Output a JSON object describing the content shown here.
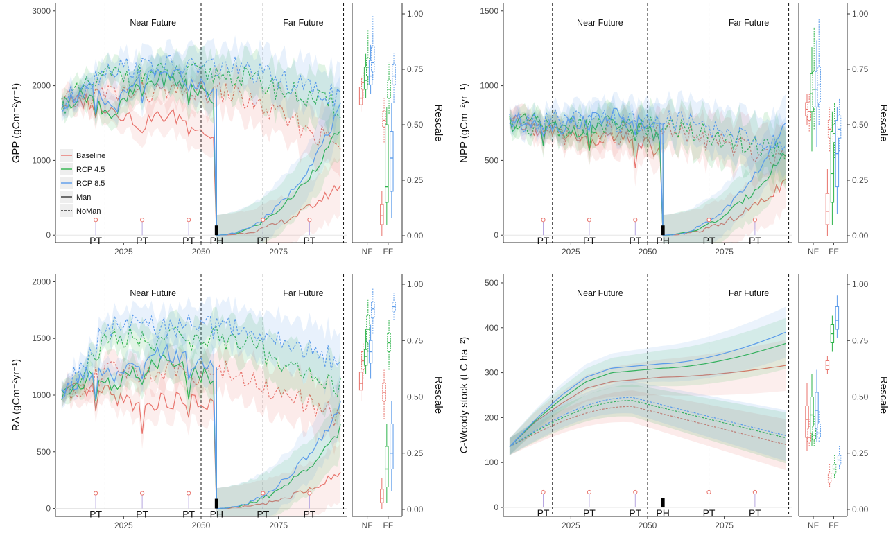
{
  "figure": {
    "legend": {
      "items": [
        {
          "label": "Baseline",
          "color": "#e8736c",
          "style": "solid"
        },
        {
          "label": "RCP 4.5",
          "color": "#2db34a",
          "style": "solid"
        },
        {
          "label": "RCP 8.5",
          "color": "#5b9bea",
          "style": "solid"
        },
        {
          "label": "Man",
          "color": "#333333",
          "style": "solid"
        },
        {
          "label": "NoMan",
          "color": "#333333",
          "style": "dashed"
        }
      ]
    },
    "period_labels": {
      "near": "Near Future",
      "far": "Far Future"
    },
    "event_labels": {
      "pt": "PT",
      "ph": "PH"
    },
    "rescale_label": "Rescale",
    "box_categories": [
      "NF",
      "FF"
    ],
    "x_ticks": [
      "2025",
      "2050",
      "2075"
    ],
    "rescale_ticks": [
      "0.00",
      "0.25",
      "0.50",
      "0.75",
      "1.00"
    ]
  },
  "chart_data": [
    {
      "type": "line",
      "panel": "GPP",
      "ylabel": "GPP (gCm⁻²yr⁻¹)",
      "ylim": [
        -100,
        3100
      ],
      "yticks": [
        0,
        1000,
        2000,
        3000
      ],
      "x_range": [
        2003,
        2097
      ],
      "period_boundaries": [
        2019,
        2050,
        2070,
        2096
      ],
      "pt_years": [
        2016,
        2031,
        2046,
        2070,
        2085
      ],
      "ph_year": 2055,
      "series": [
        {
          "name": "Baseline",
          "man_start": [
            1750,
            1800,
            1700,
            1500,
            1600,
            1550,
            1250
          ],
          "man_regrowth_end": 680,
          "noman_level": 1900,
          "noman_end": 1200
        },
        {
          "name": "RCP 4.5",
          "man_start": [
            1750,
            1900,
            1600,
            2000,
            2100,
            2000,
            1800
          ],
          "man_regrowth_end": 1450,
          "noman_level": 2150,
          "noman_end": 1700
        },
        {
          "name": "RCP 8.5",
          "man_start": [
            1750,
            1950,
            1700,
            2050,
            2150,
            2100,
            1850
          ],
          "man_regrowth_end": 1700,
          "noman_level": 2250,
          "noman_end": 1850
        }
      ],
      "boxes": {
        "NF": [
          {
            "name": "Baseline",
            "man": [
              0.56,
              0.59,
              0.62,
              0.67,
              0.72
            ],
            "noman": [
              0.62,
              0.66,
              0.69,
              0.71,
              0.74
            ]
          },
          {
            "name": "RCP 4.5",
            "man": [
              0.62,
              0.66,
              0.7,
              0.76,
              0.82
            ],
            "noman": [
              0.68,
              0.72,
              0.76,
              0.8,
              0.93
            ]
          },
          {
            "name": "RCP 8.5",
            "man": [
              0.64,
              0.68,
              0.72,
              0.79,
              0.86
            ],
            "noman": [
              0.7,
              0.74,
              0.78,
              0.85,
              0.99
            ]
          }
        ],
        "FF": [
          {
            "name": "Baseline",
            "man": [
              0.0,
              0.05,
              0.09,
              0.14,
              0.2
            ],
            "noman": [
              0.42,
              0.49,
              0.52,
              0.56,
              0.62
            ]
          },
          {
            "name": "RCP 4.5",
            "man": [
              0.05,
              0.15,
              0.22,
              0.5,
              0.58
            ],
            "noman": [
              0.55,
              0.62,
              0.66,
              0.7,
              0.78
            ]
          },
          {
            "name": "RCP 8.5",
            "man": [
              0.08,
              0.2,
              0.35,
              0.47,
              0.6
            ],
            "noman": [
              0.6,
              0.68,
              0.72,
              0.77,
              0.82
            ]
          }
        ]
      }
    },
    {
      "type": "line",
      "panel": "NPP",
      "ylabel": "NPP (gCm⁻²yr⁻¹)",
      "ylim": [
        -50,
        1550
      ],
      "yticks": [
        0,
        500,
        1000,
        1500
      ],
      "x_range": [
        2003,
        2097
      ],
      "period_boundaries": [
        2019,
        2050,
        2070,
        2096
      ],
      "pt_years": [
        2016,
        2031,
        2046,
        2070,
        2085
      ],
      "ph_year": 2055,
      "series": [
        {
          "name": "Baseline",
          "man_start": [
            750,
            720,
            680,
            640,
            650,
            620,
            560
          ],
          "man_regrowth_end": 360,
          "noman_level": 680,
          "noman_end": 520
        },
        {
          "name": "RCP 4.5",
          "man_start": [
            750,
            760,
            700,
            720,
            750,
            700,
            650
          ],
          "man_regrowth_end": 560,
          "noman_level": 720,
          "noman_end": 560
        },
        {
          "name": "RCP 8.5",
          "man_start": [
            750,
            780,
            720,
            780,
            800,
            760,
            700
          ],
          "man_regrowth_end": 740,
          "noman_level": 760,
          "noman_end": 600
        }
      ],
      "boxes": {
        "NF": [
          {
            "name": "Baseline",
            "man": [
              0.5,
              0.54,
              0.57,
              0.6,
              0.64
            ],
            "noman": [
              0.47,
              0.52,
              0.56,
              0.6,
              0.64
            ]
          },
          {
            "name": "RCP 4.5",
            "man": [
              0.38,
              0.56,
              0.64,
              0.73,
              0.85
            ],
            "noman": [
              0.48,
              0.58,
              0.66,
              0.74,
              0.94
            ]
          },
          {
            "name": "RCP 8.5",
            "man": [
              0.4,
              0.58,
              0.66,
              0.74,
              0.88
            ],
            "noman": [
              0.5,
              0.6,
              0.68,
              0.76,
              0.98
            ]
          }
        ],
        "FF": [
          {
            "name": "Baseline",
            "man": [
              0.0,
              0.05,
              0.11,
              0.19,
              0.3
            ],
            "noman": [
              0.38,
              0.44,
              0.48,
              0.52,
              0.58
            ]
          },
          {
            "name": "RCP 4.5",
            "man": [
              0.05,
              0.15,
              0.28,
              0.47,
              0.56
            ],
            "noman": [
              0.35,
              0.42,
              0.46,
              0.5,
              0.6
            ]
          },
          {
            "name": "RCP 8.5",
            "man": [
              0.1,
              0.22,
              0.37,
              0.52,
              0.58
            ],
            "noman": [
              0.38,
              0.44,
              0.48,
              0.54,
              0.62
            ]
          }
        ]
      }
    },
    {
      "type": "line",
      "panel": "RA",
      "ylabel": "RA (gCm⁻²yr⁻¹)",
      "ylim": [
        -70,
        2070
      ],
      "yticks": [
        0,
        500,
        1000,
        1500,
        2000
      ],
      "x_range": [
        2003,
        2097
      ],
      "period_boundaries": [
        2019,
        2050,
        2070,
        2096
      ],
      "pt_years": [
        2016,
        2031,
        2046,
        2070,
        2085
      ],
      "ph_year": 2055,
      "series": [
        {
          "name": "Baseline",
          "man_start": [
            1000,
            1050,
            1000,
            900,
            950,
            950,
            900
          ],
          "man_regrowth_end": 320,
          "noman_level": 1200,
          "noman_end": 800
        },
        {
          "name": "RCP 4.5",
          "man_start": [
            1000,
            1150,
            1100,
            1200,
            1300,
            1200,
            1150
          ],
          "man_regrowth_end": 700,
          "noman_level": 1500,
          "noman_end": 1050
        },
        {
          "name": "RCP 8.5",
          "man_start": [
            1000,
            1200,
            1150,
            1250,
            1380,
            1300,
            1250
          ],
          "man_regrowth_end": 900,
          "noman_level": 1600,
          "noman_end": 1300
        }
      ],
      "boxes": {
        "NF": [
          {
            "name": "Baseline",
            "man": [
              0.48,
              0.53,
              0.56,
              0.61,
              0.7
            ],
            "noman": [
              0.58,
              0.62,
              0.66,
              0.7,
              0.74
            ]
          },
          {
            "name": "RCP 4.5",
            "man": [
              0.6,
              0.64,
              0.68,
              0.71,
              0.8
            ],
            "noman": [
              0.7,
              0.74,
              0.8,
              0.86,
              0.93
            ]
          },
          {
            "name": "RCP 8.5",
            "man": [
              0.58,
              0.65,
              0.7,
              0.75,
              0.82
            ],
            "noman": [
              0.78,
              0.85,
              0.89,
              0.92,
              0.98
            ]
          }
        ],
        "FF": [
          {
            "name": "Baseline",
            "man": [
              0.0,
              0.03,
              0.05,
              0.09,
              0.14
            ],
            "noman": [
              0.4,
              0.48,
              0.52,
              0.56,
              0.62
            ]
          },
          {
            "name": "RCP 4.5",
            "man": [
              0.03,
              0.1,
              0.18,
              0.28,
              0.38
            ],
            "noman": [
              0.62,
              0.7,
              0.74,
              0.78,
              0.84
            ]
          },
          {
            "name": "RCP 8.5",
            "man": [
              0.08,
              0.18,
              0.25,
              0.38,
              0.48
            ],
            "noman": [
              0.84,
              0.88,
              0.9,
              0.92,
              0.96
            ]
          }
        ]
      }
    },
    {
      "type": "line",
      "panel": "C-Woody",
      "ylabel": "C-Woody stock (t C ha⁻²)",
      "ylim": [
        -20,
        520
      ],
      "yticks": [
        0,
        100,
        200,
        300,
        400,
        500
      ],
      "x_range": [
        2003,
        2097
      ],
      "period_boundaries": [
        2019,
        2050,
        2070,
        2096
      ],
      "pt_years": [
        2016,
        2031,
        2046,
        2070,
        2085
      ],
      "ph_year": 2055,
      "series": [
        {
          "name": "Baseline",
          "man_start": [
            135,
            190,
            230,
            265,
            280,
            285,
            290
          ],
          "man_regrowth_end": 316,
          "noman_level": 225,
          "noman_end": 140
        },
        {
          "name": "RCP 4.5",
          "man_start": [
            135,
            192,
            240,
            280,
            300,
            305,
            310
          ],
          "man_regrowth_end": 365,
          "noman_level": 238,
          "noman_end": 155
        },
        {
          "name": "RCP 8.5",
          "man_start": [
            135,
            195,
            248,
            290,
            310,
            315,
            320
          ],
          "man_regrowth_end": 390,
          "noman_level": 245,
          "noman_end": 160
        }
      ],
      "boxes": {
        "NF": [
          {
            "name": "Baseline",
            "man": [
              0.26,
              0.32,
              0.4,
              0.46,
              0.56
            ],
            "noman": [
              0.28,
              0.3,
              0.32,
              0.36,
              0.4
            ]
          },
          {
            "name": "RCP 4.5",
            "man": [
              0.28,
              0.34,
              0.42,
              0.5,
              0.6
            ],
            "noman": [
              0.28,
              0.31,
              0.33,
              0.37,
              0.42
            ]
          },
          {
            "name": "RCP 8.5",
            "man": [
              0.3,
              0.36,
              0.44,
              0.52,
              0.62
            ],
            "noman": [
              0.3,
              0.32,
              0.34,
              0.38,
              0.44
            ]
          }
        ],
        "FF": [
          {
            "name": "Baseline",
            "man": [
              0.6,
              0.62,
              0.64,
              0.66,
              0.68
            ],
            "noman": [
              0.1,
              0.12,
              0.14,
              0.16,
              0.2
            ]
          },
          {
            "name": "RCP 4.5",
            "man": [
              0.7,
              0.74,
              0.78,
              0.82,
              0.86
            ],
            "noman": [
              0.14,
              0.16,
              0.18,
              0.2,
              0.24
            ]
          },
          {
            "name": "RCP 8.5",
            "man": [
              0.76,
              0.8,
              0.84,
              0.9,
              0.95
            ],
            "noman": [
              0.18,
              0.2,
              0.22,
              0.24,
              0.28
            ]
          }
        ]
      }
    }
  ]
}
